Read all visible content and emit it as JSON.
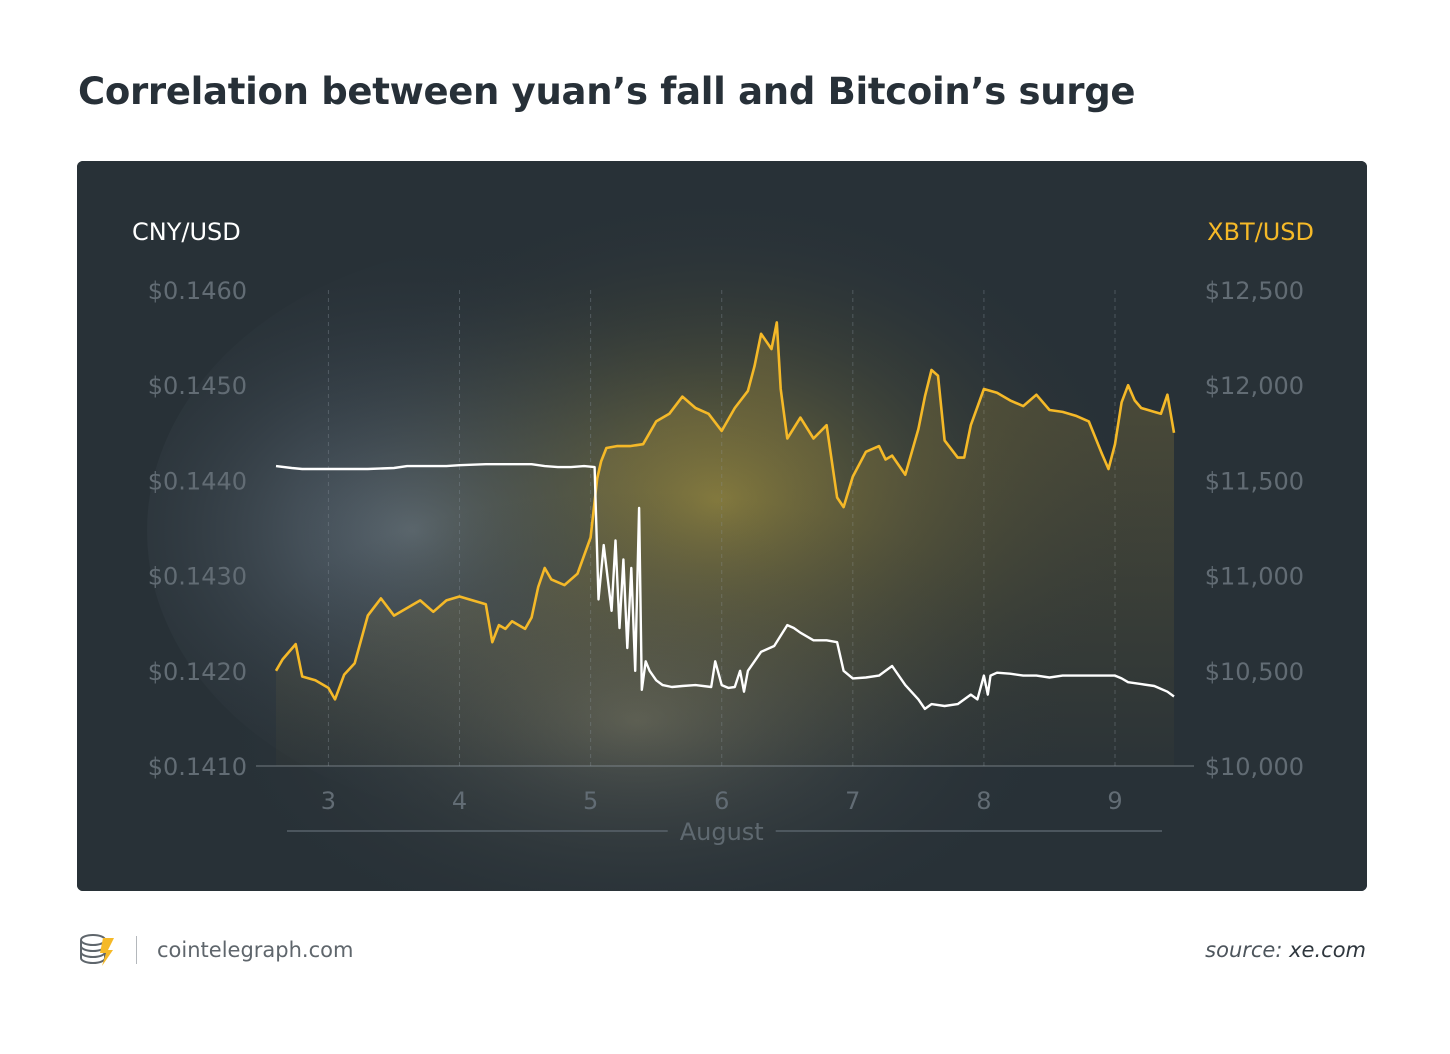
{
  "page": {
    "title": "Correlation between yuan’s fall and Bitcoin’s surge",
    "footer": {
      "logo_icon": "cointelegraph-coin-icon",
      "site": "cointelegraph.com",
      "source_label": "source:",
      "source_value": "xe.com"
    }
  },
  "chart_data": {
    "type": "line",
    "title": "Correlation between yuan’s fall and Bitcoin’s surge",
    "xlabel": "August",
    "x_ticks": [
      "3",
      "4",
      "5",
      "6",
      "7",
      "8",
      "9"
    ],
    "x_range": [
      2.6,
      9.45
    ],
    "left_axis": {
      "name": "CNY/USD",
      "range": [
        0.141,
        0.146
      ],
      "tick_values": [
        0.141,
        0.142,
        0.143,
        0.144,
        0.145,
        0.146
      ],
      "tick_labels": [
        "$0.1410",
        "$0.1420",
        "$0.1430",
        "$0.1440",
        "$0.1450",
        "$0.1460"
      ]
    },
    "right_axis": {
      "name": "XBT/USD",
      "range": [
        10000,
        12500
      ],
      "tick_values": [
        10000,
        10500,
        11000,
        11500,
        12000,
        12500
      ],
      "tick_labels": [
        "$10,000",
        "$10,500",
        "$11,000",
        "$11,500",
        "$12,000",
        "$12,500"
      ]
    },
    "grid": "vertical-dashed",
    "legend": {
      "left": "top-left",
      "right": "top-right"
    },
    "colors": {
      "cny": "#ffffff",
      "xbt": "#f5b928",
      "panel": "#2a333a"
    },
    "series": [
      {
        "name": "CNY/USD",
        "axis": "left",
        "x": [
          2.6,
          2.72,
          2.8,
          3.0,
          3.3,
          3.5,
          3.6,
          3.9,
          4.0,
          4.2,
          4.4,
          4.55,
          4.65,
          4.75,
          4.85,
          4.95,
          5.03,
          5.06,
          5.1,
          5.13,
          5.16,
          5.19,
          5.22,
          5.25,
          5.28,
          5.31,
          5.34,
          5.37,
          5.39,
          5.42,
          5.45,
          5.5,
          5.55,
          5.62,
          5.7,
          5.8,
          5.92,
          5.95,
          6.0,
          6.05,
          6.1,
          6.14,
          6.17,
          6.2,
          6.3,
          6.4,
          6.5,
          6.55,
          6.6,
          6.7,
          6.8,
          6.88,
          6.93,
          7.0,
          7.1,
          7.2,
          7.3,
          7.4,
          7.5,
          7.55,
          7.6,
          7.7,
          7.8,
          7.9,
          7.95,
          8.0,
          8.03,
          8.05,
          8.1,
          8.2,
          8.3,
          8.4,
          8.5,
          8.6,
          8.7,
          8.8,
          8.9,
          9.0,
          9.05,
          9.1,
          9.2,
          9.3,
          9.4,
          9.45
        ],
        "y": [
          0.14415,
          0.14413,
          0.14412,
          0.14412,
          0.14412,
          0.14413,
          0.14415,
          0.14415,
          0.14416,
          0.14417,
          0.14417,
          0.14417,
          0.14415,
          0.14414,
          0.14414,
          0.14415,
          0.14414,
          0.14275,
          0.14332,
          0.14297,
          0.14263,
          0.14337,
          0.14245,
          0.14317,
          0.14224,
          0.14308,
          0.142,
          0.14371,
          0.1418,
          0.1421,
          0.142,
          0.1419,
          0.14185,
          0.14183,
          0.14184,
          0.14185,
          0.14183,
          0.1421,
          0.14185,
          0.14182,
          0.14183,
          0.142,
          0.14178,
          0.142,
          0.1422,
          0.14226,
          0.14248,
          0.14245,
          0.1424,
          0.14232,
          0.14232,
          0.1423,
          0.142,
          0.14192,
          0.14193,
          0.14195,
          0.14205,
          0.14185,
          0.1417,
          0.1416,
          0.14165,
          0.14163,
          0.14165,
          0.14175,
          0.1417,
          0.14195,
          0.14175,
          0.14195,
          0.14198,
          0.14197,
          0.14195,
          0.14195,
          0.14193,
          0.14195,
          0.14195,
          0.14195,
          0.14195,
          0.14195,
          0.14192,
          0.14188,
          0.14186,
          0.14184,
          0.14178,
          0.14173
        ]
      },
      {
        "name": "XBT/USD",
        "axis": "right",
        "x": [
          2.6,
          2.65,
          2.75,
          2.8,
          2.9,
          3.0,
          3.05,
          3.12,
          3.2,
          3.3,
          3.4,
          3.5,
          3.6,
          3.7,
          3.8,
          3.9,
          4.0,
          4.1,
          4.2,
          4.25,
          4.3,
          4.35,
          4.4,
          4.5,
          4.55,
          4.6,
          4.65,
          4.7,
          4.8,
          4.9,
          5.0,
          5.05,
          5.08,
          5.12,
          5.2,
          5.3,
          5.4,
          5.5,
          5.6,
          5.7,
          5.8,
          5.9,
          6.0,
          6.1,
          6.2,
          6.25,
          6.3,
          6.38,
          6.42,
          6.45,
          6.5,
          6.6,
          6.7,
          6.8,
          6.88,
          6.93,
          7.0,
          7.1,
          7.2,
          7.25,
          7.3,
          7.4,
          7.5,
          7.55,
          7.6,
          7.65,
          7.7,
          7.8,
          7.85,
          7.9,
          8.0,
          8.1,
          8.2,
          8.3,
          8.4,
          8.5,
          8.6,
          8.7,
          8.8,
          8.9,
          8.95,
          9.0,
          9.05,
          9.1,
          9.15,
          9.2,
          9.3,
          9.35,
          9.4,
          9.45
        ],
        "y": [
          10500,
          10560,
          10640,
          10470,
          10450,
          10410,
          10350,
          10480,
          10540,
          10790,
          10880,
          10790,
          10830,
          10870,
          10810,
          10870,
          10890,
          10870,
          10850,
          10650,
          10740,
          10720,
          10760,
          10720,
          10780,
          10940,
          11040,
          10980,
          10950,
          11010,
          11200,
          11510,
          11600,
          11670,
          11680,
          11680,
          11690,
          11810,
          11850,
          11940,
          11880,
          11850,
          11760,
          11880,
          11970,
          12100,
          12270,
          12190,
          12330,
          11980,
          11720,
          11830,
          11720,
          11790,
          11410,
          11360,
          11520,
          11650,
          11680,
          11610,
          11630,
          11530,
          11770,
          11940,
          12080,
          12050,
          11710,
          11620,
          11620,
          11790,
          11980,
          11960,
          11920,
          11890,
          11950,
          11870,
          11860,
          11840,
          11810,
          11640,
          11560,
          11690,
          11910,
          12000,
          11920,
          11880,
          11860,
          11850,
          11950,
          11750
        ]
      }
    ]
  }
}
